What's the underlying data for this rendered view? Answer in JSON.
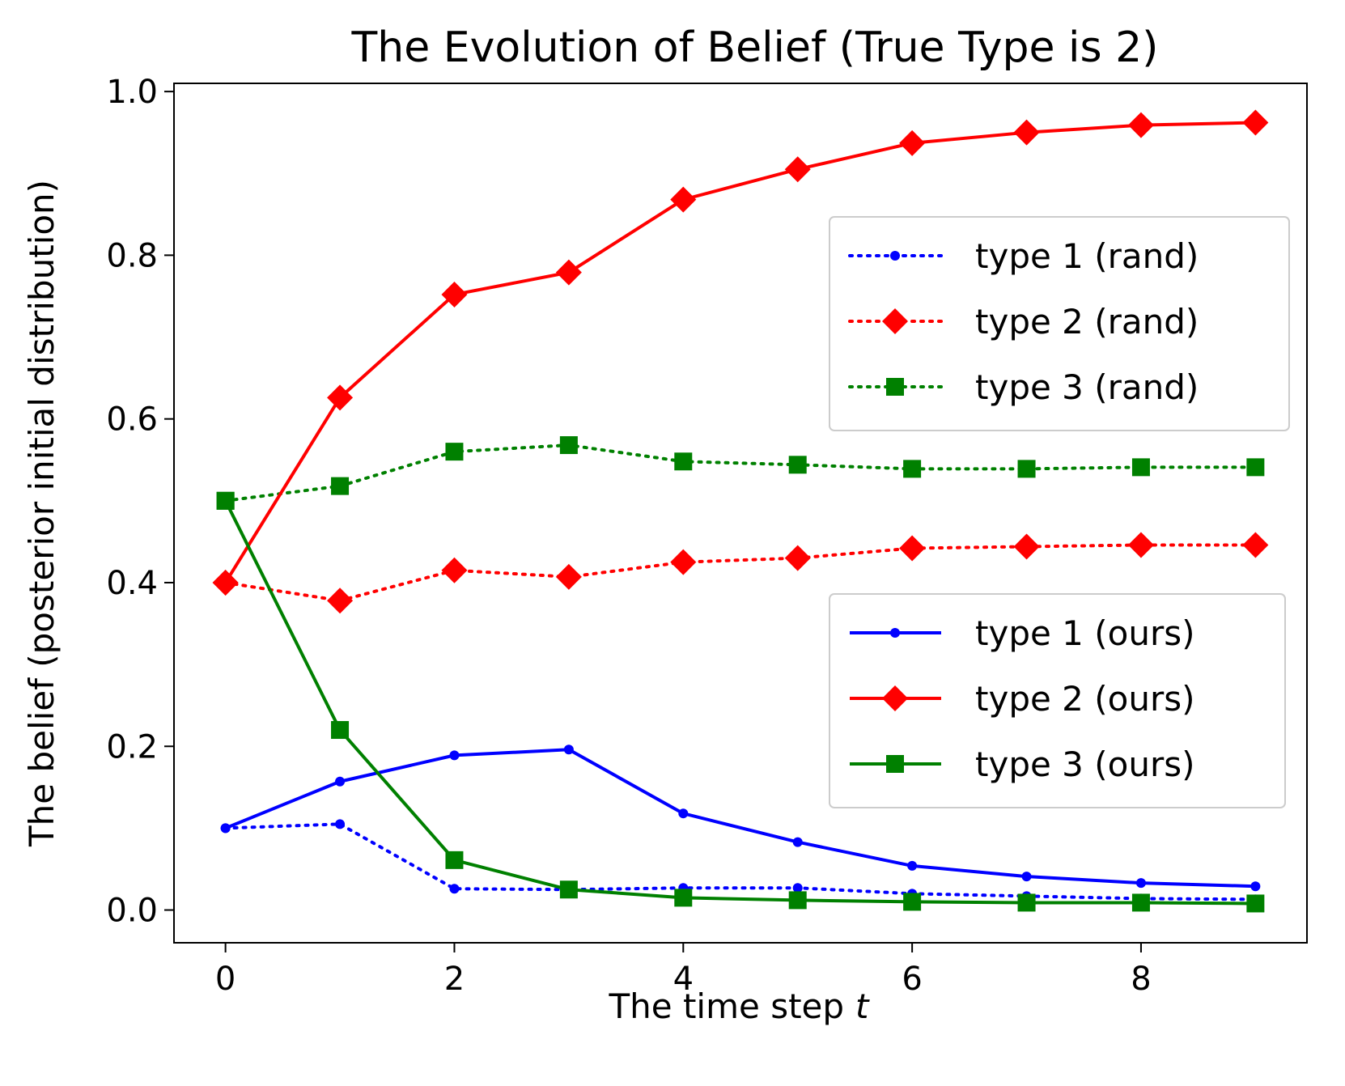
{
  "chart_data": {
    "type": "line",
    "title": "The Evolution of Belief (True Type is 2)",
    "xlabel": "The time step",
    "xlabel_var": "t",
    "ylabel": "The belief (posterior initial distribution)",
    "x": [
      0,
      1,
      2,
      3,
      4,
      5,
      6,
      7,
      8,
      9
    ],
    "xlim": [
      -0.45,
      9.45
    ],
    "ylim": [
      -0.04,
      1.01
    ],
    "xticks": [
      0,
      2,
      4,
      6,
      8
    ],
    "xtick_labels": [
      "0",
      "2",
      "4",
      "6",
      "8"
    ],
    "yticks": [
      0.0,
      0.2,
      0.4,
      0.6,
      0.8,
      1.0
    ],
    "ytick_labels": [
      "0.0",
      "0.2",
      "0.4",
      "0.6",
      "0.8",
      "1.0"
    ],
    "grid": false,
    "series": [
      {
        "name": "type 1 (rand)",
        "color": "#0000ff",
        "line": "dotted",
        "marker": "point",
        "legend": "top-right",
        "values": [
          0.1,
          0.105,
          0.026,
          0.025,
          0.027,
          0.027,
          0.02,
          0.017,
          0.014,
          0.013
        ]
      },
      {
        "name": "type 2 (rand)",
        "color": "#ff0000",
        "line": "dotted",
        "marker": "diamond",
        "legend": "top-right",
        "values": [
          0.4,
          0.378,
          0.415,
          0.407,
          0.425,
          0.43,
          0.442,
          0.444,
          0.446,
          0.446
        ]
      },
      {
        "name": "type 3 (rand)",
        "color": "#008000",
        "line": "dotted",
        "marker": "square",
        "legend": "top-right",
        "values": [
          0.5,
          0.518,
          0.56,
          0.568,
          0.548,
          0.544,
          0.539,
          0.539,
          0.541,
          0.541
        ]
      },
      {
        "name": "type 1 (ours)",
        "color": "#0000ff",
        "line": "solid",
        "marker": "point",
        "legend": "center-right",
        "values": [
          0.1,
          0.157,
          0.189,
          0.196,
          0.118,
          0.083,
          0.054,
          0.041,
          0.033,
          0.029
        ]
      },
      {
        "name": "type 2 (ours)",
        "color": "#ff0000",
        "line": "solid",
        "marker": "diamond",
        "legend": "center-right",
        "values": [
          0.4,
          0.626,
          0.752,
          0.779,
          0.868,
          0.905,
          0.937,
          0.95,
          0.959,
          0.962
        ]
      },
      {
        "name": "type 3 (ours)",
        "color": "#008000",
        "line": "solid",
        "marker": "square",
        "legend": "center-right",
        "values": [
          0.5,
          0.22,
          0.061,
          0.025,
          0.015,
          0.012,
          0.01,
          0.009,
          0.009,
          0.008
        ]
      }
    ]
  }
}
